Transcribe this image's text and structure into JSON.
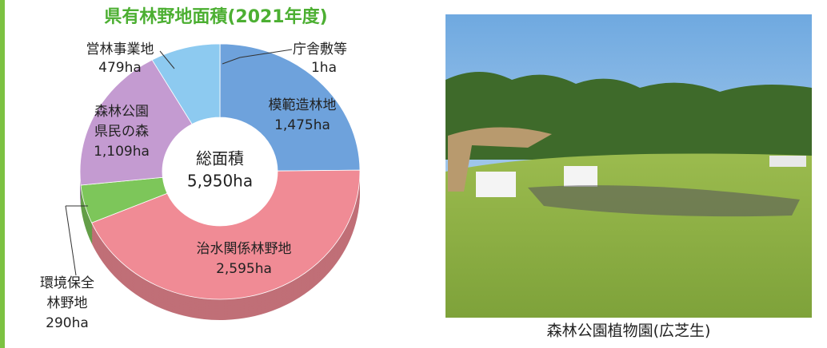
{
  "chart_data": {
    "type": "donut",
    "title": "県有林野地面積(2021年度)",
    "categories": [
      "庁舎敷等",
      "模範造林地",
      "治水関係林野地",
      "環境保全\n林野地",
      "森林公園\n県民の森",
      "営林事業地"
    ],
    "values": [
      1,
      1475,
      2595,
      290,
      1109,
      479
    ],
    "value_labels": [
      "1ha",
      "1,475ha",
      "2,595ha",
      "290ha",
      "1,109ha",
      "479ha"
    ],
    "colors": [
      "#d9b98a",
      "#6ea2dc",
      "#f08b95",
      "#7dc65a",
      "#c49bd1",
      "#8dcaf0"
    ],
    "annotations": [
      "総面積",
      "5,950ha"
    ]
  },
  "photo_caption": "森林公園植物園(広芝生)"
}
